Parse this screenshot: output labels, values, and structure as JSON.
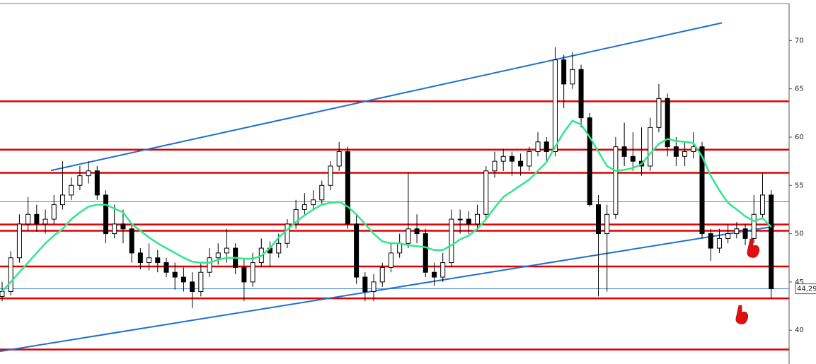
{
  "chart_data": {
    "type": "candlestick",
    "ylim": [
      36.5,
      74.2
    ],
    "yticks": [
      40,
      45,
      50,
      55,
      60,
      65,
      70
    ],
    "colors": {
      "up": "#ffffff",
      "down": "#000000",
      "wick": "#000000"
    },
    "open": [
      43.5,
      44,
      47.5,
      51,
      52,
      51,
      51.5,
      53,
      54,
      55,
      56,
      56.5,
      54,
      50,
      51,
      50.5,
      48,
      47,
      47.5,
      47,
      46,
      45.5,
      45,
      44,
      46,
      47.5,
      48,
      48.5,
      46.5,
      45,
      47,
      48.5,
      48,
      49,
      51,
      52.5,
      53,
      53.5,
      55,
      57,
      58.5,
      51,
      45.5,
      44,
      45,
      46.5,
      48,
      49,
      50.5,
      50,
      46,
      45.5,
      47,
      51.5,
      51.5,
      51,
      52,
      56.5,
      57.5,
      58,
      57.5,
      57,
      58.5,
      59.5,
      58.5,
      68,
      65.5,
      67,
      62,
      53,
      50,
      52,
      59,
      58,
      57.5,
      57,
      61,
      64,
      59,
      58,
      58.5,
      59,
      50,
      48.5,
      49.5,
      50,
      50.5,
      49.5,
      52,
      54
    ],
    "high": [
      45,
      48.2,
      52,
      53.8,
      53,
      52.5,
      54,
      57.5,
      55.8,
      57,
      57.5,
      57,
      54.5,
      53,
      52.5,
      51,
      48.5,
      49,
      48.3,
      47.5,
      47,
      46.5,
      46,
      47,
      48.5,
      49,
      50.5,
      49,
      47.5,
      48,
      49.5,
      49.2,
      50,
      51.5,
      53.5,
      54.2,
      54.5,
      55.5,
      57.5,
      59.5,
      59,
      52,
      46,
      45.8,
      47,
      49,
      50,
      56.3,
      52,
      50.5,
      47,
      48,
      52.5,
      52.5,
      52.3,
      53,
      57,
      58.5,
      58.8,
      58.5,
      58.3,
      59,
      60.5,
      60,
      69.3,
      68.5,
      68.8,
      67.5,
      62.5,
      54,
      53,
      60,
      61.5,
      60.5,
      61,
      62,
      65.5,
      64.5,
      60,
      59.5,
      60.5,
      59.5,
      50.5,
      50.5,
      51,
      51.2,
      51,
      54,
      56.3,
      54.5
    ],
    "low": [
      43,
      43.6,
      47,
      50.3,
      50.2,
      50,
      51,
      52.5,
      53.5,
      54.5,
      55.2,
      53.5,
      49,
      49.5,
      49,
      47,
      46.3,
      46.2,
      46,
      45.5,
      44.2,
      44,
      42.3,
      43.5,
      45.5,
      46.8,
      47,
      45.8,
      43,
      44.5,
      46.5,
      46.5,
      47.5,
      48.5,
      50.5,
      52,
      52.5,
      53,
      54.5,
      56.5,
      50.5,
      44.8,
      43,
      43,
      44.5,
      46,
      47.5,
      48.5,
      49,
      45.5,
      44.6,
      45,
      46.5,
      50,
      50,
      50.5,
      51.5,
      55.8,
      56.5,
      56,
      56,
      56.5,
      58,
      57.5,
      58,
      63,
      65,
      61,
      52.8,
      43.5,
      44,
      51.5,
      57,
      56.5,
      56,
      56.5,
      60.5,
      58,
      57,
      57,
      57.8,
      49.5,
      47.2,
      48,
      49,
      49.5,
      48.8,
      49,
      51.5,
      43.3
    ],
    "close": [
      44,
      47.5,
      51,
      52,
      51,
      51.5,
      53,
      54,
      55,
      56,
      56.5,
      54,
      50,
      51,
      50.5,
      48,
      47,
      47.5,
      47,
      46,
      45.5,
      45,
      44,
      46,
      47.5,
      48,
      48.5,
      46.5,
      45,
      47,
      48.5,
      48,
      49,
      51,
      52.5,
      53,
      53.5,
      55,
      57,
      58.5,
      51,
      45.5,
      44,
      45,
      46.5,
      48,
      49,
      50.5,
      50,
      46,
      45.5,
      47,
      51.5,
      51.5,
      51,
      52,
      56.5,
      57.5,
      58,
      57.5,
      57,
      58.5,
      59.5,
      58.5,
      68,
      65.5,
      67,
      62,
      53,
      50,
      52,
      59,
      58,
      57.5,
      57,
      61,
      64,
      59,
      58,
      58.5,
      59,
      50,
      48.5,
      49.5,
      50,
      50.5,
      49.5,
      52,
      54,
      44.29
    ],
    "ma": {
      "color": "#2ee88a",
      "values": [
        44,
        45,
        46,
        47,
        48,
        49,
        49.8,
        50.5,
        51.5,
        52.2,
        52.8,
        53,
        53,
        52.6,
        52.2,
        51,
        50.3,
        49.6,
        49,
        48.5,
        48,
        47.5,
        47.1,
        47,
        47,
        47.3,
        47.5,
        47.5,
        47.4,
        47.4,
        47.7,
        48.5,
        49.6,
        50.4,
        51.2,
        51.9,
        52.5,
        53,
        53.2,
        53.3,
        52.8,
        52,
        51,
        50,
        49.2,
        49,
        49,
        48.8,
        48.7,
        48.6,
        48.3,
        48.3,
        48.8,
        49.4,
        49.8,
        50.5,
        51.5,
        52.7,
        53.8,
        54.4,
        55,
        55.6,
        56.5,
        57.4,
        59,
        60.5,
        61.7,
        61.3,
        60,
        58.5,
        57,
        56.5,
        56.6,
        56.8,
        57.2,
        58.3,
        59.3,
        59.8,
        59.6,
        59.5,
        59.4,
        58,
        56,
        54.5,
        53.2,
        52.5,
        51.8,
        51.3,
        51.6,
        50.7
      ]
    },
    "levels": [
      {
        "value": 63.7,
        "color": "#e00000"
      },
      {
        "value": 58.7,
        "color": "#e00000"
      },
      {
        "value": 56.3,
        "color": "#e00000"
      },
      {
        "value": 53.3,
        "color": "#7a7a9a"
      },
      {
        "value": 50.95,
        "color": "#e00000"
      },
      {
        "value": 50.3,
        "color": "#e00000"
      },
      {
        "value": 46.6,
        "color": "#e00000"
      },
      {
        "value": 43.3,
        "color": "#e00000"
      },
      {
        "value": 38,
        "color": "#e00000"
      }
    ],
    "trendlines": [
      {
        "color": "#1f6fd0",
        "points": [
          {
            "x": 5.65,
            "y": 56.54
          },
          {
            "x": 83.3,
            "y": 71.83
          }
        ]
      },
      {
        "color": "#1f6fd0",
        "points": [
          {
            "x": -0.25,
            "y": 37.81
          },
          {
            "x": 89.4,
            "y": 50.76
          }
        ]
      }
    ],
    "last_price": {
      "value": 44.29,
      "label": "44,29",
      "color": "#2a7bd6"
    }
  }
}
